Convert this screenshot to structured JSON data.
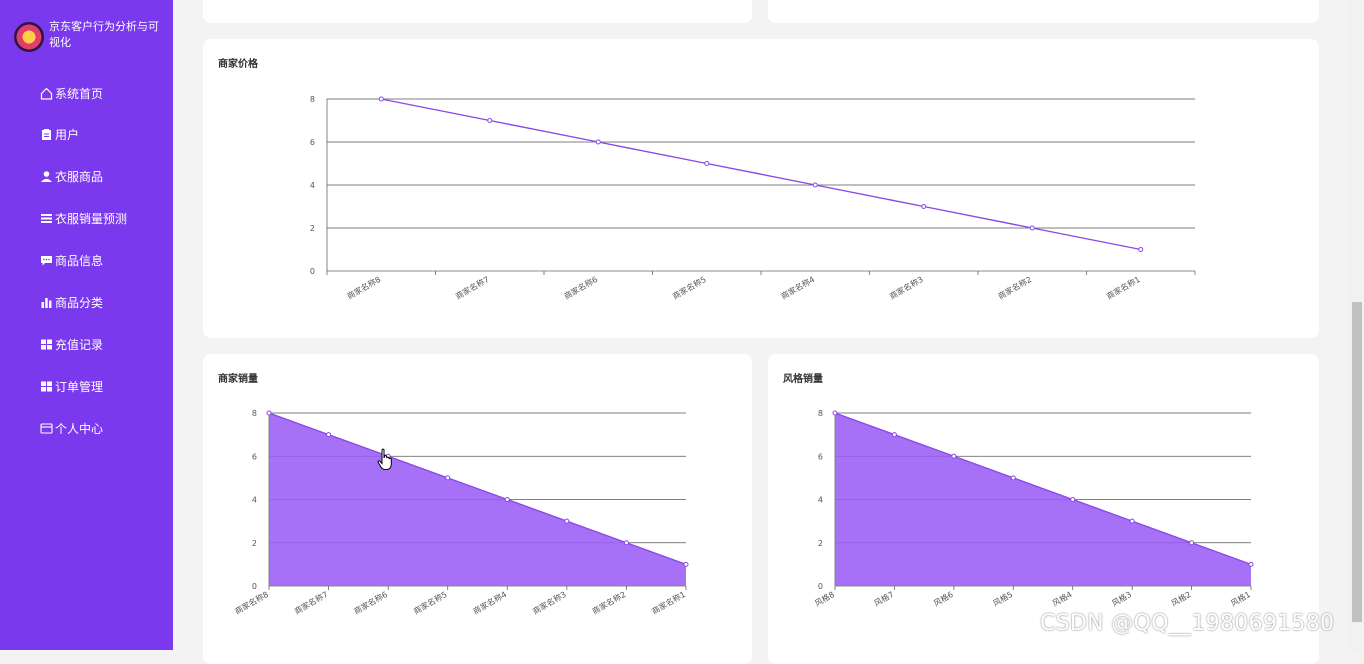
{
  "app": {
    "title": "京东客户行为分析与可视化"
  },
  "sidebar": {
    "items": [
      {
        "label": "系统首页",
        "icon": "home-icon"
      },
      {
        "label": "用户",
        "icon": "clipboard-icon"
      },
      {
        "label": "衣服商品",
        "icon": "user-icon"
      },
      {
        "label": "衣服销量预测",
        "icon": "list-icon"
      },
      {
        "label": "商品信息",
        "icon": "message-icon"
      },
      {
        "label": "商品分类",
        "icon": "bar-chart-icon"
      },
      {
        "label": "充值记录",
        "icon": "grid-icon"
      },
      {
        "label": "订单管理",
        "icon": "grid-icon"
      },
      {
        "label": "个人中心",
        "icon": "card-icon"
      }
    ]
  },
  "colors": {
    "sidebar": "#7b39ed",
    "line": "#8a49e6",
    "area_fill": "#9a5df5",
    "page_bg": "#f3f3f3"
  },
  "watermark": "CSDN @QQ__1980691580",
  "chart_data": [
    {
      "type": "line",
      "title": "商家价格",
      "categories": [
        "商家名称8",
        "商家名称7",
        "商家名称6",
        "商家名称5",
        "商家名称4",
        "商家名称3",
        "商家名称2",
        "商家名称1"
      ],
      "values": [
        8,
        7,
        6,
        5,
        4,
        3,
        2,
        1
      ],
      "ylim": [
        0,
        8
      ],
      "yticks": [
        0,
        2,
        4,
        6,
        8
      ],
      "grid": true
    },
    {
      "type": "area",
      "title": "商家销量",
      "categories": [
        "商家名称8",
        "商家名称7",
        "商家名称6",
        "商家名称5",
        "商家名称4",
        "商家名称3",
        "商家名称2",
        "商家名称1"
      ],
      "values": [
        8,
        7,
        6,
        5,
        4,
        3,
        2,
        1
      ],
      "ylim": [
        0,
        8
      ],
      "yticks": [
        0,
        2,
        4,
        6,
        8
      ],
      "grid": true
    },
    {
      "type": "area",
      "title": "风格销量",
      "categories": [
        "风格8",
        "风格7",
        "风格6",
        "风格5",
        "风格4",
        "风格3",
        "风格2",
        "风格1"
      ],
      "values": [
        8,
        7,
        6,
        5,
        4,
        3,
        2,
        1
      ],
      "ylim": [
        0,
        8
      ],
      "yticks": [
        0,
        2,
        4,
        6,
        8
      ],
      "grid": true
    }
  ]
}
